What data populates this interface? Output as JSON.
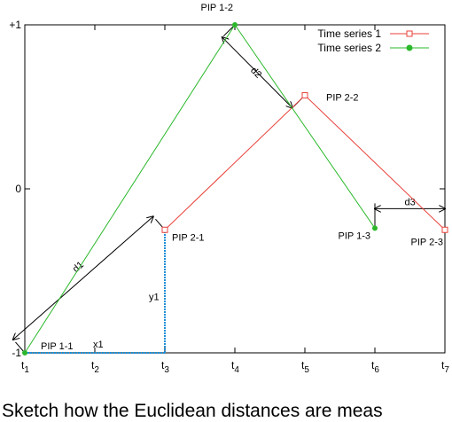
{
  "chart_data": {
    "type": "line",
    "x_ticks": [
      "1",
      "2",
      "3",
      "4",
      "5",
      "6",
      "7"
    ],
    "y_ticks": [
      {
        "value": 1,
        "label": "+1"
      },
      {
        "value": 0,
        "label": "0"
      },
      {
        "value": -1,
        "label": "-1"
      }
    ],
    "xlim": [
      1,
      7
    ],
    "ylim": [
      -1,
      1
    ],
    "grid": false,
    "legend_position": "top-right",
    "series": [
      {
        "name": "Time series 1",
        "color": "#e8403a",
        "marker": "square",
        "points": [
          [
            3,
            -0.25
          ],
          [
            5,
            0.57
          ],
          [
            7,
            -0.25
          ]
        ]
      },
      {
        "name": "Time series 2",
        "color": "#2ab82a",
        "marker": "circle",
        "points": [
          [
            1,
            -1
          ],
          [
            4,
            1
          ],
          [
            6,
            -0.24
          ]
        ]
      }
    ],
    "point_labels": [
      {
        "text": "PIP 1-1",
        "x": 1,
        "y": -1
      },
      {
        "text": "PIP 1-2",
        "x": 4,
        "y": 1
      },
      {
        "text": "PIP 1-3",
        "x": 6,
        "y": -0.24
      },
      {
        "text": "PIP 2-1",
        "x": 3,
        "y": -0.25
      },
      {
        "text": "PIP 2-2",
        "x": 5,
        "y": 0.57
      },
      {
        "text": "PIP 2-3",
        "x": 7,
        "y": -0.25
      }
    ],
    "distance_labels": [
      "d1",
      "d2",
      "d3",
      "x1",
      "y1"
    ],
    "colors": {
      "distance_line": "#1a8fd6",
      "axis": "#000000"
    }
  },
  "caption": "Sketch how the Euclidean distances are meas"
}
